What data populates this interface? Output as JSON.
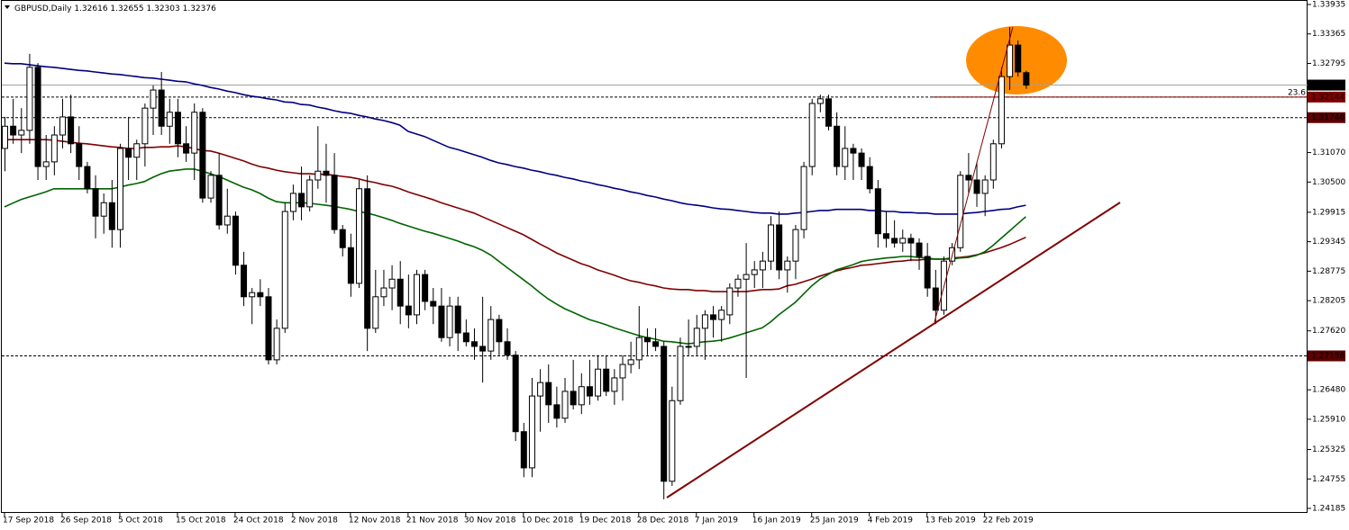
{
  "chart_data": {
    "type": "candlestick",
    "title": "GBPUSD,Daily",
    "categories": [
      "17 Sep 2018",
      null,
      null,
      null,
      null,
      null,
      null,
      "26 Sep 2018",
      null,
      null,
      null,
      null,
      null,
      null,
      "5 Oct 2018",
      null,
      null,
      null,
      null,
      null,
      null,
      "15 Oct 2018",
      null,
      null,
      null,
      null,
      null,
      null,
      "24 Oct 2018",
      null,
      null,
      null,
      null,
      null,
      null,
      "2 Nov 2018",
      null,
      null,
      null,
      null,
      null,
      null,
      "12 Nov 2018",
      null,
      null,
      null,
      null,
      null,
      null,
      "21 Nov 2018",
      null,
      null,
      null,
      null,
      null,
      null,
      "30 Nov 2018",
      null,
      null,
      null,
      null,
      null,
      null,
      "10 Dec 2018",
      null,
      null,
      null,
      null,
      null,
      null,
      "19 Dec 2018",
      null,
      null,
      null,
      null,
      null,
      null,
      "28 Dec 2018",
      null,
      null,
      null,
      null,
      null,
      null,
      "7 Jan 2019",
      null,
      null,
      null,
      null,
      null,
      null,
      "16 Jan 2019",
      null,
      null,
      null,
      null,
      null,
      null,
      "25 Jan 2019",
      null,
      null,
      null,
      null,
      null,
      null,
      "4 Feb 2019",
      null,
      null,
      null,
      null,
      null,
      null,
      "13 Feb 2019",
      null,
      null,
      null,
      null,
      null,
      null,
      "22 Feb 2019",
      null,
      null,
      null,
      null,
      null
    ],
    "open": [
      1.3115,
      1.3158,
      1.3141,
      1.315,
      1.3272,
      1.308,
      1.3089,
      1.3141,
      1.3176,
      1.3124,
      1.308,
      1.3037,
      1.2984,
      1.301,
      1.2958,
      1.3115,
      1.3098,
      1.3124,
      1.3193,
      1.3228,
      1.3158,
      1.3185,
      1.3124,
      1.3106,
      1.3185,
      1.3019,
      1.3063,
      1.2967,
      1.2984,
      1.2889,
      1.2828,
      1.2836,
      1.2828,
      1.2706,
      1.2767,
      1.2993,
      1.3028,
      1.3002,
      1.3054,
      1.3071,
      1.3063,
      1.2958,
      1.2923,
      1.2854,
      1.3037,
      1.2767,
      1.2828,
      1.2845,
      1.2862,
      1.281,
      1.2793,
      1.2871,
      1.2819,
      1.281,
      1.2749,
      1.281,
      1.2758,
      1.2741,
      1.2732,
      1.2723,
      1.2784,
      1.2741,
      1.2715,
      1.2567,
      1.2497,
      1.2636,
      1.2662,
      1.2619,
      1.2593,
      1.2645,
      1.2619,
      1.2654,
      1.2636,
      1.2688,
      1.2645,
      1.2671,
      1.2697,
      1.2706,
      1.2749,
      1.2741,
      1.2732,
      1.2471,
      1.2627,
      1.2732,
      1.2732,
      1.2767,
      1.2793,
      1.2784,
      1.2793,
      1.2845,
      1.2862,
      1.2871,
      1.288,
      1.2897,
      1.2967,
      1.288,
      1.2897,
      1.2958,
      1.308,
      1.3202,
      1.3211,
      1.3158,
      1.308,
      1.3115,
      1.3106,
      1.308,
      1.3037,
      1.295,
      1.2941,
      1.2932,
      1.2941,
      1.2932,
      1.2906,
      1.2845,
      1.2802,
      1.2897,
      1.2923,
      1.3063,
      1.3054,
      1.3028,
      1.3054,
      1.3124,
      1.3254,
      1.3315,
      1.32616
    ],
    "high": [
      1.3176,
      1.3211,
      1.3193,
      1.3298,
      1.328,
      1.3141,
      1.3158,
      1.3211,
      1.3219,
      1.3158,
      1.3089,
      1.3063,
      1.3028,
      1.3054,
      1.3124,
      1.3176,
      1.3132,
      1.3202,
      1.3237,
      1.3263,
      1.3211,
      1.3211,
      1.3158,
      1.3202,
      1.3193,
      1.3071,
      1.3106,
      1.3037,
      1.2993,
      1.2915,
      1.2845,
      1.2862,
      1.2845,
      1.2784,
      1.301,
      1.3045,
      1.308,
      1.3063,
      1.3158,
      1.3124,
      1.3106,
      1.2967,
      1.295,
      1.3054,
      1.3063,
      1.288,
      1.288,
      1.2889,
      1.2897,
      1.2871,
      1.288,
      1.288,
      1.2845,
      1.2845,
      1.2828,
      1.2828,
      1.2784,
      1.2767,
      1.2828,
      1.281,
      1.2793,
      1.2767,
      1.2723,
      1.2584,
      1.2671,
      1.2688,
      1.2697,
      1.2654,
      1.2671,
      1.2706,
      1.268,
      1.2706,
      1.2715,
      1.2715,
      1.2688,
      1.2715,
      1.2741,
      1.281,
      1.2767,
      1.2767,
      1.2741,
      1.2654,
      1.2749,
      1.2784,
      1.2793,
      1.2802,
      1.281,
      1.281,
      1.2854,
      1.2871,
      1.2932,
      1.2897,
      1.2915,
      1.2984,
      1.2993,
      1.2906,
      1.2967,
      1.3089,
      1.3211,
      1.3219,
      1.3219,
      1.3185,
      1.3158,
      1.3124,
      1.3115,
      1.3098,
      1.3054,
      1.2993,
      1.2976,
      1.2958,
      1.295,
      1.2941,
      1.2932,
      1.288,
      1.2906,
      1.2932,
      1.3071,
      1.3106,
      1.3089,
      1.3063,
      1.3132,
      1.3272,
      1.335,
      1.3324,
      1.32655
    ],
    "low": [
      1.3071,
      1.3124,
      1.3106,
      1.3124,
      1.3054,
      1.3054,
      1.3063,
      1.3115,
      1.3106,
      1.3054,
      1.3028,
      1.2941,
      1.295,
      1.2923,
      1.2923,
      1.3054,
      1.3054,
      1.308,
      1.3141,
      1.3141,
      1.3124,
      1.3098,
      1.3089,
      1.3054,
      1.301,
      1.301,
      1.2958,
      1.295,
      1.2871,
      1.281,
      1.2775,
      1.281,
      1.2697,
      1.2697,
      1.2758,
      1.2976,
      1.2976,
      1.2993,
      1.3037,
      1.301,
      1.295,
      1.2906,
      1.2828,
      1.2845,
      1.2723,
      1.2758,
      1.281,
      1.2802,
      1.2775,
      1.2767,
      1.2775,
      1.2802,
      1.2775,
      1.2741,
      1.2732,
      1.2723,
      1.2732,
      1.2706,
      1.2662,
      1.2706,
      1.2715,
      1.2706,
      1.2549,
      1.2479,
      1.2479,
      1.2567,
      1.2584,
      1.2575,
      1.2584,
      1.261,
      1.2601,
      1.2619,
      1.2627,
      1.2636,
      1.2619,
      1.2627,
      1.268,
      1.2688,
      1.2715,
      1.2723,
      1.2436,
      1.2462,
      1.2619,
      1.2715,
      1.2715,
      1.2706,
      1.2749,
      1.2741,
      1.2775,
      1.2828,
      1.2671,
      1.2845,
      1.2845,
      1.288,
      1.2862,
      1.2836,
      1.2862,
      1.2941,
      1.3063,
      1.3185,
      1.315,
      1.3063,
      1.3054,
      1.3054,
      1.3054,
      1.3028,
      1.2923,
      1.2923,
      1.2923,
      1.2915,
      1.2897,
      1.288,
      1.2828,
      1.2775,
      1.2793,
      1.2889,
      1.2915,
      1.3028,
      1.3002,
      1.2984,
      1.3037,
      1.3115,
      1.3228,
      1.3254,
      1.32303
    ],
    "close": [
      1.3158,
      1.3141,
      1.315,
      1.3272,
      1.308,
      1.3089,
      1.3141,
      1.3176,
      1.3124,
      1.308,
      1.3037,
      1.2984,
      1.301,
      1.2958,
      1.3115,
      1.3098,
      1.3124,
      1.3193,
      1.3228,
      1.3158,
      1.3185,
      1.3124,
      1.3106,
      1.3185,
      1.3019,
      1.3063,
      1.2967,
      1.2984,
      1.2889,
      1.2828,
      1.2836,
      1.2828,
      1.2706,
      1.2767,
      1.2993,
      1.3028,
      1.3002,
      1.3054,
      1.3071,
      1.3063,
      1.2958,
      1.2923,
      1.2854,
      1.3037,
      1.2767,
      1.2828,
      1.2845,
      1.2862,
      1.281,
      1.2793,
      1.2871,
      1.2819,
      1.281,
      1.2749,
      1.281,
      1.2758,
      1.2741,
      1.2732,
      1.2723,
      1.2784,
      1.2741,
      1.2715,
      1.2567,
      1.2497,
      1.2636,
      1.2662,
      1.2619,
      1.2593,
      1.2645,
      1.2619,
      1.2654,
      1.2636,
      1.2688,
      1.2645,
      1.2671,
      1.2697,
      1.2706,
      1.2749,
      1.2741,
      1.2732,
      1.2471,
      1.2627,
      1.2732,
      1.2732,
      1.2767,
      1.2793,
      1.2784,
      1.2802,
      1.2845,
      1.2862,
      1.2871,
      1.288,
      1.2897,
      1.2967,
      1.288,
      1.2897,
      1.2958,
      1.308,
      1.3202,
      1.3211,
      1.3158,
      1.308,
      1.3115,
      1.3106,
      1.308,
      1.3037,
      1.295,
      1.2941,
      1.2932,
      1.2941,
      1.2932,
      1.2906,
      1.2845,
      1.2802,
      1.2897,
      1.2923,
      1.3063,
      1.3054,
      1.3028,
      1.3054,
      1.3124,
      1.3254,
      1.3315,
      1.3263,
      1.32376
    ],
    "up_color": "#ffffff",
    "down_color": "#000000",
    "lines": [
      {
        "color": "#000080",
        "values": [
          1.328,
          1.3279,
          1.3279,
          1.3277,
          1.3275,
          1.3273,
          1.3272,
          1.327,
          1.3268,
          1.3266,
          1.3265,
          1.3263,
          1.3261,
          1.3259,
          1.3258,
          1.3256,
          1.3254,
          1.3252,
          1.3251,
          1.3249,
          1.3247,
          1.3245,
          1.3244,
          1.324,
          1.3237,
          1.3233,
          1.323,
          1.3226,
          1.3223,
          1.3219,
          1.3216,
          1.3214,
          1.3211,
          1.3209,
          1.3205,
          1.3204,
          1.32,
          1.3199,
          1.3195,
          1.3192,
          1.3188,
          1.3185,
          1.3183,
          1.3179,
          1.3176,
          1.3172,
          1.3169,
          1.3165,
          1.316,
          1.3148,
          1.3143,
          1.3138,
          1.3131,
          1.3124,
          1.3117,
          1.3113,
          1.3108,
          1.3103,
          1.3098,
          1.3092,
          1.3087,
          1.3084,
          1.308,
          1.3077,
          1.3073,
          1.307,
          1.3066,
          1.3063,
          1.3059,
          1.3056,
          1.3052,
          1.3049,
          1.3045,
          1.3042,
          1.3038,
          1.3035,
          1.3031,
          1.3028,
          1.3024,
          1.3021,
          1.3017,
          1.3014,
          1.301,
          1.3007,
          1.3005,
          1.3003,
          1.3,
          1.2998,
          1.2997,
          1.2995,
          1.2993,
          1.2991,
          1.299,
          1.299,
          1.2988,
          1.2988,
          1.299,
          1.2991,
          1.2993,
          1.2995,
          1.2995,
          1.2997,
          1.2997,
          1.2997,
          1.2997,
          1.2995,
          1.2995,
          1.2993,
          1.2993,
          1.2991,
          1.2991,
          1.299,
          1.299,
          1.2988,
          1.2988,
          1.2988,
          1.2988,
          1.299,
          1.2991,
          1.2993,
          1.2995,
          1.2997,
          1.2998,
          1.3002,
          1.3005
        ]
      },
      {
        "color": "#800000",
        "values": [
          1.3132,
          1.3132,
          1.3132,
          1.3132,
          1.3132,
          1.3132,
          1.3131,
          1.3129,
          1.3127,
          1.3125,
          1.3124,
          1.3122,
          1.312,
          1.3118,
          1.3117,
          1.3115,
          1.3115,
          1.3117,
          1.3117,
          1.3118,
          1.3118,
          1.312,
          1.3118,
          1.3115,
          1.3111,
          1.311,
          1.3106,
          1.3101,
          1.3096,
          1.3091,
          1.3085,
          1.308,
          1.3077,
          1.3073,
          1.307,
          1.3068,
          1.3066,
          1.3066,
          1.3065,
          1.3065,
          1.3063,
          1.3061,
          1.3059,
          1.3056,
          1.3052,
          1.3049,
          1.3045,
          1.3042,
          1.3037,
          1.3031,
          1.3026,
          1.3021,
          1.3016,
          1.301,
          1.3005,
          1.3,
          1.2995,
          1.299,
          1.2983,
          1.2976,
          1.2969,
          1.2962,
          1.2955,
          1.2948,
          1.2939,
          1.293,
          1.2922,
          1.2913,
          1.2906,
          1.2899,
          1.2892,
          1.2887,
          1.288,
          1.2875,
          1.287,
          1.2864,
          1.2859,
          1.2856,
          1.2852,
          1.2849,
          1.2845,
          1.2843,
          1.2842,
          1.2842,
          1.284,
          1.284,
          1.2838,
          1.2838,
          1.2838,
          1.2838,
          1.2838,
          1.284,
          1.2842,
          1.2842,
          1.2843,
          1.2849,
          1.2852,
          1.2857,
          1.2862,
          1.2868,
          1.2873,
          1.2878,
          1.2882,
          1.2885,
          1.2889,
          1.289,
          1.2892,
          1.2894,
          1.2896,
          1.2897,
          1.2899,
          1.2899,
          1.2901,
          1.2901,
          1.2901,
          1.2903,
          1.2904,
          1.2906,
          1.2909,
          1.2913,
          1.2918,
          1.2923,
          1.2929,
          1.2936,
          1.2943
        ]
      },
      {
        "color": "#006400",
        "values": [
          1.3002,
          1.3009,
          1.3016,
          1.3021,
          1.3026,
          1.3031,
          1.3037,
          1.3037,
          1.3037,
          1.3037,
          1.3037,
          1.3037,
          1.3037,
          1.3037,
          1.304,
          1.3044,
          1.3047,
          1.3051,
          1.3059,
          1.3066,
          1.3071,
          1.3073,
          1.3075,
          1.3075,
          1.3071,
          1.3066,
          1.3061,
          1.3054,
          1.3047,
          1.304,
          1.3035,
          1.3028,
          1.3019,
          1.3012,
          1.301,
          1.301,
          1.301,
          1.3009,
          1.3007,
          1.3005,
          1.3003,
          1.3,
          1.2997,
          1.2993,
          1.299,
          1.2986,
          1.2981,
          1.2976,
          1.297,
          1.2965,
          1.296,
          1.2955,
          1.2951,
          1.2946,
          1.2941,
          1.2936,
          1.293,
          1.2925,
          1.2918,
          1.2909,
          1.2897,
          1.2885,
          1.2873,
          1.2861,
          1.2849,
          1.2836,
          1.2824,
          1.2814,
          1.2805,
          1.2798,
          1.2791,
          1.2784,
          1.2779,
          1.2774,
          1.2768,
          1.2763,
          1.2758,
          1.2753,
          1.2749,
          1.2746,
          1.2742,
          1.2741,
          1.2739,
          1.2737,
          1.2739,
          1.2741,
          1.2742,
          1.2744,
          1.2748,
          1.2753,
          1.2758,
          1.2763,
          1.2768,
          1.2779,
          1.2793,
          1.2805,
          1.2817,
          1.2833,
          1.2849,
          1.2862,
          1.2871,
          1.288,
          1.2885,
          1.289,
          1.2896,
          1.2899,
          1.2901,
          1.2903,
          1.2904,
          1.2906,
          1.2906,
          1.2904,
          1.2903,
          1.2901,
          1.2901,
          1.2901,
          1.2903,
          1.2904,
          1.2908,
          1.2915,
          1.2927,
          1.2941,
          1.2955,
          1.2969,
          1.2983
        ]
      }
    ],
    "hlines": [
      {
        "value": 1.32144,
        "color": "#800000"
      },
      {
        "value": 1.31746,
        "color": "#5a0000"
      },
      {
        "value": 1.27136,
        "color": "#5a0000"
      }
    ],
    "fib_label": "23.6",
    "price_line_color": "#a0a0a0",
    "ylim": [
      1.24098,
      1.34022
    ],
    "yticks": [
      1.33935,
      1.33365,
      1.32795,
      {
        "value": 1.3107,
        "label": "1.31070"
      },
      {
        "value": 1.305,
        "label": "1.30500"
      },
      1.29915,
      1.29345,
      1.28775,
      1.28205,
      {
        "value": 1.2762,
        "label": "1.27620"
      },
      {
        "value": 1.2648,
        "label": "1.26480"
      },
      {
        "value": 1.2591,
        "label": "1.25910"
      },
      1.25325,
      1.24755,
      1.24185
    ]
  }
}
